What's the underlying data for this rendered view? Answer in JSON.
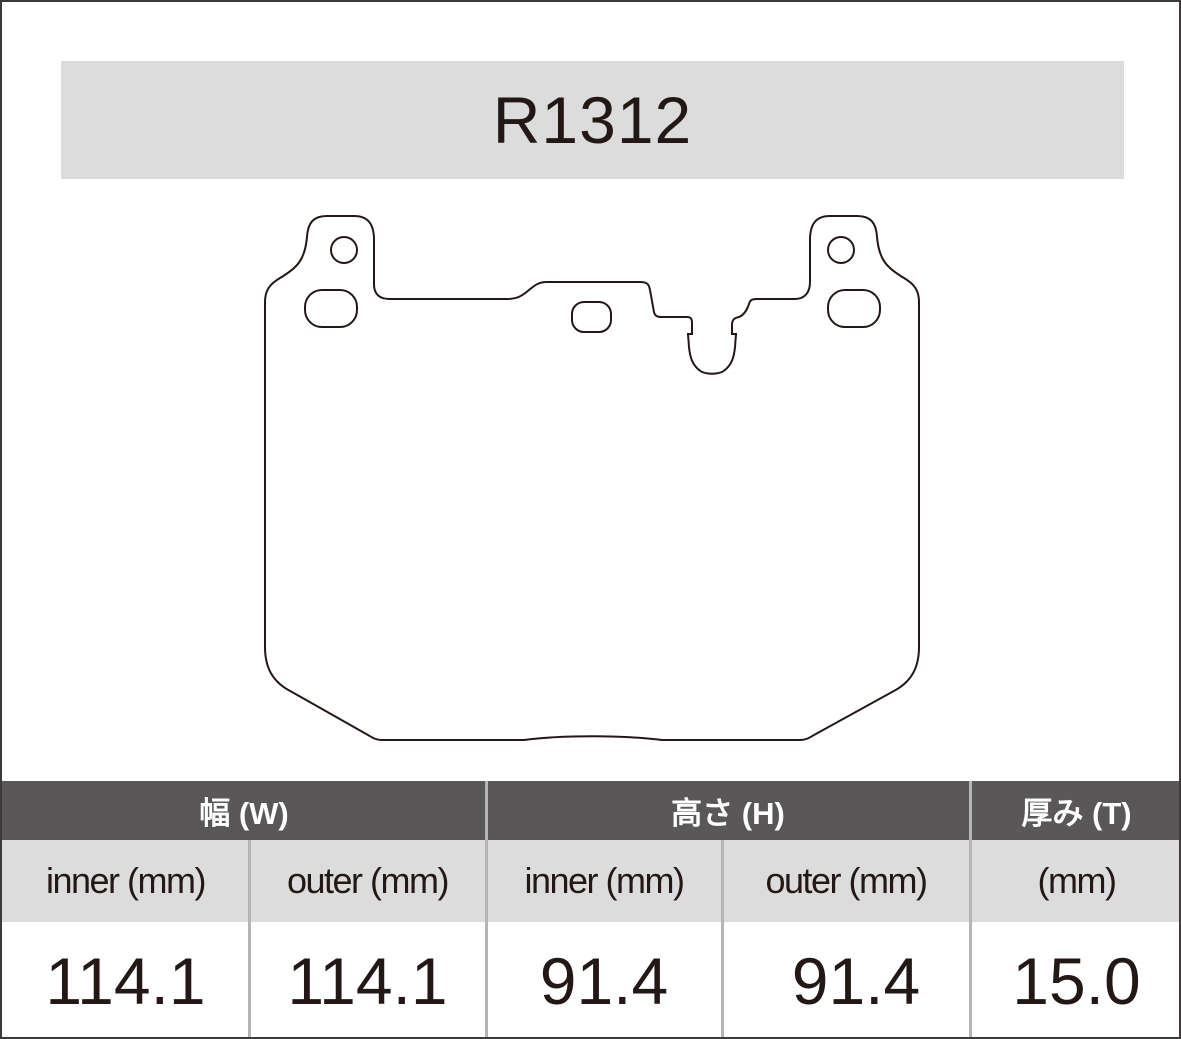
{
  "title": "R1312",
  "table": {
    "groups": [
      {
        "label": "幅 (W)"
      },
      {
        "label": "高さ (H)"
      },
      {
        "label": "厚み (T)"
      }
    ],
    "subheaders": [
      "inner (mm)",
      "outer (mm)",
      "inner (mm)",
      "outer (mm)",
      "(mm)"
    ],
    "values": [
      "114.1",
      "114.1",
      "91.4",
      "91.4",
      "15.0"
    ]
  },
  "colors": {
    "header_bg": "#595757",
    "subheader_bg": "#dcdcdc",
    "title_bg": "#dcdcdc",
    "text": "#231815"
  }
}
